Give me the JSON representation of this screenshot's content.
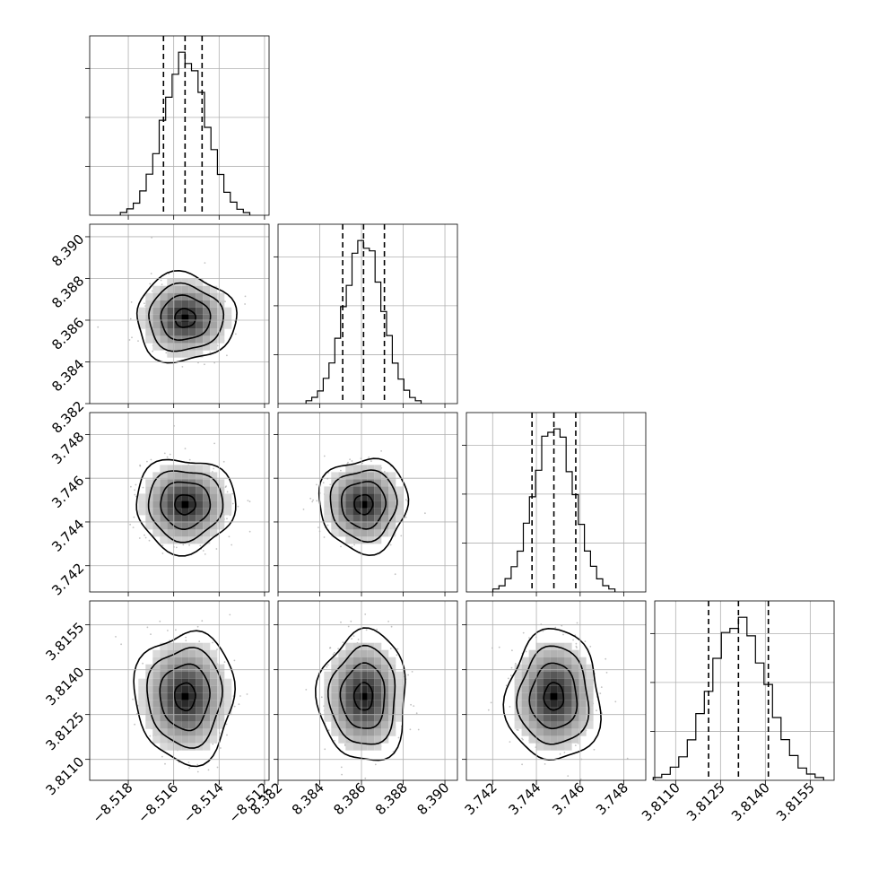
{
  "chart_data": {
    "type": "corner",
    "title": "",
    "parameters": [
      {
        "name": "",
        "range": [
          -8.5197,
          -8.5118
        ],
        "mean": -8.5155,
        "sd": 0.00095,
        "quantiles": [
          -8.51645,
          -8.5155,
          -8.51475
        ],
        "ticks": [
          -8.518,
          -8.516,
          -8.514,
          -8.512
        ],
        "tick_labels": [
          "−8.518",
          "−8.516",
          "−8.514",
          "−8.512"
        ]
      },
      {
        "name": "",
        "range": [
          8.382,
          8.3906
        ],
        "mean": 8.3861,
        "sd": 0.00092,
        "quantiles": [
          8.3851,
          8.3861,
          8.3871
        ],
        "ticks": [
          8.382,
          8.384,
          8.386,
          8.388,
          8.39
        ],
        "tick_labels": [
          "8.382",
          "8.384",
          "8.386",
          "8.388",
          "8.390"
        ]
      },
      {
        "name": "",
        "range": [
          3.7408,
          3.749
        ],
        "mean": 3.7448,
        "sd": 0.00093,
        "quantiles": [
          3.7438,
          3.7448,
          3.7458
        ],
        "ticks": [
          3.742,
          3.744,
          3.746,
          3.748
        ],
        "tick_labels": [
          "3.742",
          "3.744",
          "3.746",
          "3.748"
        ]
      },
      {
        "name": "",
        "range": [
          3.8103,
          3.8163
        ],
        "mean": 3.8131,
        "sd": 0.00095,
        "quantiles": [
          3.8121,
          3.8131,
          3.8141
        ],
        "ticks": [
          3.811,
          3.8125,
          3.814,
          3.8155
        ],
        "tick_labels": [
          "3.8110",
          "3.8125",
          "3.8140",
          "3.8155"
        ]
      }
    ],
    "histogram_bins": 20,
    "contour_levels_sigma": [
      0.5,
      1.0,
      1.5,
      2.0
    ],
    "grid": true,
    "colors": {
      "line": "#000000",
      "grid": "#b0b0b0",
      "scatter": "#9a9a9a"
    }
  }
}
